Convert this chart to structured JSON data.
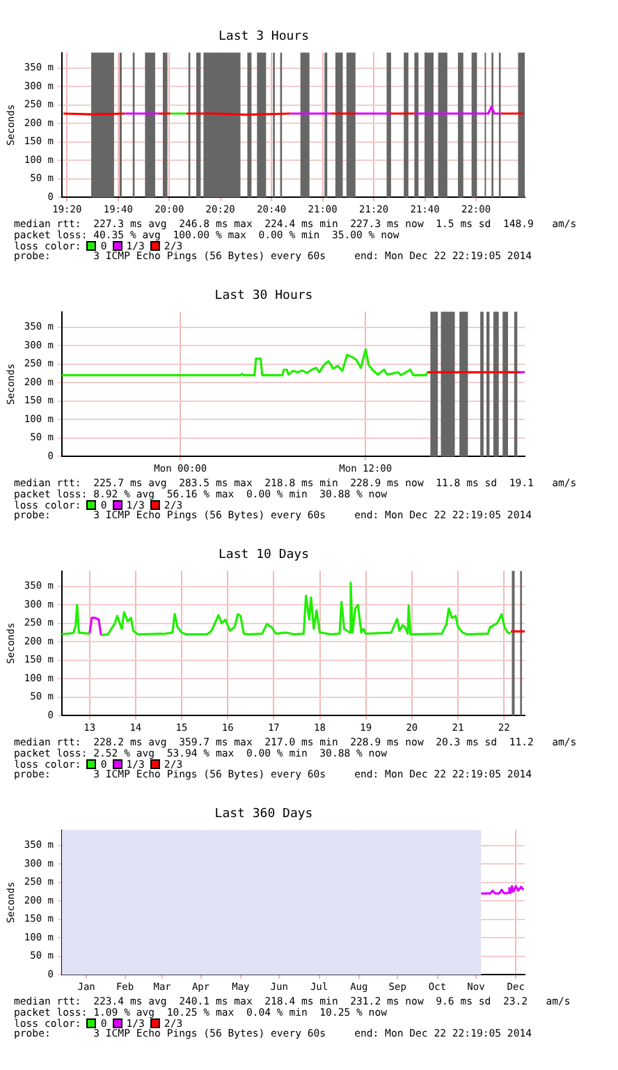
{
  "chart_data": [
    {
      "type": "line",
      "title": "Last 3 Hours",
      "ylabel": "Seconds",
      "legend": "bottom",
      "legend_title": "loss color:",
      "grid": true,
      "xlim": [
        19.3,
        22.3175
      ],
      "xticks": [
        {
          "value": 19.3333,
          "label": "19:20"
        },
        {
          "value": 19.6667,
          "label": "19:40"
        },
        {
          "value": 20,
          "label": "20:00"
        },
        {
          "value": 20.3333,
          "label": "20:20"
        },
        {
          "value": 20.6667,
          "label": "20:40"
        },
        {
          "value": 21,
          "label": "21:00"
        },
        {
          "value": 21.3333,
          "label": "21:20"
        },
        {
          "value": 21.6667,
          "label": "21:40"
        },
        {
          "value": 22,
          "label": "22:00"
        }
      ],
      "ylim": [
        0,
        392
      ],
      "yticks": [
        {
          "value": 0,
          "label": "0"
        },
        {
          "value": 50,
          "label": "50 m"
        },
        {
          "value": 100,
          "label": "100 m"
        },
        {
          "value": 150,
          "label": "150 m"
        },
        {
          "value": 200,
          "label": "200 m"
        },
        {
          "value": 250,
          "label": "250 m"
        },
        {
          "value": 300,
          "label": "300 m"
        },
        {
          "value": 350,
          "label": "350 m"
        }
      ],
      "series": [
        {
          "name": "0",
          "color": "#22ee00",
          "x": [
            20.01,
            20.11
          ],
          "values": [
            227,
            227
          ]
        },
        {
          "name": "1/3",
          "color": "#dd00ff",
          "x": [
            19.71,
            19.93,
            20.5,
            20.79,
            21.05,
            21.1,
            21.22,
            21.44,
            21.5,
            21.6,
            22.08,
            22.1,
            22.12,
            22.16
          ],
          "values": [
            227,
            227,
            null,
            227,
            227,
            null,
            227,
            227,
            null,
            227,
            227,
            245,
            227,
            227
          ]
        },
        {
          "name": "2/3",
          "color": "#ff0000",
          "x": [
            19.31,
            19.5,
            19.71,
            19.8,
            19.93,
            20.01,
            20.06,
            20.11,
            20.3,
            20.5,
            20.79,
            20.9,
            21.05,
            21.22,
            21.3,
            21.44,
            21.6,
            21.9,
            22.16,
            22.31
          ],
          "values": [
            227,
            225,
            227,
            null,
            227,
            227,
            null,
            227,
            227,
            224,
            227,
            null,
            227,
            227,
            null,
            227,
            227,
            null,
            227,
            227
          ]
        }
      ],
      "bands": [
        {
          "axis": "x",
          "from": 19.491,
          "to": 19.64,
          "color": "#666666"
        },
        {
          "axis": "x",
          "from": 19.676,
          "to": 19.69,
          "color": "#666666"
        },
        {
          "axis": "x",
          "from": 19.762,
          "to": 19.774,
          "color": "#666666"
        },
        {
          "axis": "x",
          "from": 19.842,
          "to": 19.908,
          "color": "#666666"
        },
        {
          "axis": "x",
          "from": 19.958,
          "to": 19.988,
          "color": "#666666"
        },
        {
          "axis": "x",
          "from": 20.125,
          "to": 20.137,
          "color": "#666666"
        },
        {
          "axis": "x",
          "from": 20.176,
          "to": 20.205,
          "color": "#666666"
        },
        {
          "axis": "x",
          "from": 20.223,
          "to": 20.464,
          "color": "#666666"
        },
        {
          "axis": "x",
          "from": 20.509,
          "to": 20.536,
          "color": "#666666"
        },
        {
          "axis": "x",
          "from": 20.572,
          "to": 20.631,
          "color": "#666666"
        },
        {
          "axis": "x",
          "from": 20.676,
          "to": 20.688,
          "color": "#666666"
        },
        {
          "axis": "x",
          "from": 20.723,
          "to": 20.735,
          "color": "#666666"
        },
        {
          "axis": "x",
          "from": 20.855,
          "to": 20.914,
          "color": "#666666"
        },
        {
          "axis": "x",
          "from": 21.012,
          "to": 21.03,
          "color": "#666666"
        },
        {
          "axis": "x",
          "from": 21.083,
          "to": 21.131,
          "color": "#666666"
        },
        {
          "axis": "x",
          "from": 21.155,
          "to": 21.214,
          "color": "#666666"
        },
        {
          "axis": "x",
          "from": 21.417,
          "to": 21.446,
          "color": "#666666"
        },
        {
          "axis": "x",
          "from": 21.529,
          "to": 21.559,
          "color": "#666666"
        },
        {
          "axis": "x",
          "from": 21.598,
          "to": 21.625,
          "color": "#666666"
        },
        {
          "axis": "x",
          "from": 21.664,
          "to": 21.723,
          "color": "#666666"
        },
        {
          "axis": "x",
          "from": 21.753,
          "to": 21.813,
          "color": "#666666"
        },
        {
          "axis": "x",
          "from": 21.882,
          "to": 21.917,
          "color": "#666666"
        },
        {
          "axis": "x",
          "from": 21.971,
          "to": 22.006,
          "color": "#666666"
        },
        {
          "axis": "x",
          "from": 22.056,
          "to": 22.065,
          "color": "#666666"
        },
        {
          "axis": "x",
          "from": 22.101,
          "to": 22.113,
          "color": "#666666"
        },
        {
          "axis": "x",
          "from": 22.149,
          "to": 22.161,
          "color": "#666666"
        },
        {
          "axis": "x",
          "from": 22.274,
          "to": 22.3175,
          "color": "#666666"
        }
      ],
      "annotations": [
        "median rtt:  227.3 ms avg  246.8 ms max  224.4 ms min  227.3 ms now  1.5 ms sd  148.9   am/s",
        "packet loss: 40.35 % avg  100.00 % max  0.00 % min  35.00 % now",
        "probe:       3 ICMP Echo Pings (56 Bytes) every 60s",
        "end: Mon Dec 22 22:19:05 2014"
      ]
    },
    {
      "type": "line",
      "title": "Last 30 Hours",
      "ylabel": "Seconds",
      "legend": "bottom",
      "legend_title": "loss color:",
      "grid": true,
      "xlim": [
        "2014-12-21T16:19",
        "2014-12-22T22:19"
      ],
      "xticks": [
        {
          "value": "2014-12-22T00:00",
          "label": "Mon 00:00"
        },
        {
          "value": "2014-12-22T12:00",
          "label": "Mon 12:00"
        }
      ],
      "ylim": [
        0,
        392
      ],
      "yticks": [
        {
          "value": 0,
          "label": "0"
        },
        {
          "value": 50,
          "label": "50 m"
        },
        {
          "value": 100,
          "label": "100 m"
        },
        {
          "value": 150,
          "label": "150 m"
        },
        {
          "value": 200,
          "label": "200 m"
        },
        {
          "value": 250,
          "label": "250 m"
        },
        {
          "value": 300,
          "label": "300 m"
        },
        {
          "value": 350,
          "label": "350 m"
        }
      ],
      "series": [
        {
          "name": "0",
          "color": "#22ee00",
          "x": [
            "2014-12-21T16:19",
            "2014-12-22T03:54",
            "2014-12-22T04:00",
            "2014-12-22T04:06",
            "2014-12-22T04:48",
            "2014-12-22T04:54",
            "2014-12-22T05:12",
            "2014-12-22T05:18",
            "2014-12-22T06:36",
            "2014-12-22T06:42",
            "2014-12-22T06:54",
            "2014-12-22T07:00",
            "2014-12-22T07:18",
            "2014-12-22T07:36",
            "2014-12-22T07:54",
            "2014-12-22T08:12",
            "2014-12-22T08:30",
            "2014-12-22T08:48",
            "2014-12-22T09:00",
            "2014-12-22T09:18",
            "2014-12-22T09:36",
            "2014-12-22T09:54",
            "2014-12-22T10:12",
            "2014-12-22T10:30",
            "2014-12-22T10:48",
            "2014-12-22T11:06",
            "2014-12-22T11:24",
            "2014-12-22T11:42",
            "2014-12-22T12:00",
            "2014-12-22T12:12",
            "2014-12-22T12:30",
            "2014-12-22T12:48",
            "2014-12-22T13:12",
            "2014-12-22T13:24",
            "2014-12-22T14:06",
            "2014-12-22T14:18",
            "2014-12-22T14:54",
            "2014-12-22T15:06",
            "2014-12-22T15:54",
            "2014-12-22T16:00"
          ],
          "values": [
            220,
            220,
            224,
            220,
            220,
            265,
            265,
            220,
            220,
            235,
            235,
            222,
            232,
            228,
            233,
            226,
            235,
            240,
            228,
            248,
            258,
            238,
            245,
            232,
            275,
            270,
            262,
            240,
            290,
            248,
            232,
            222,
            235,
            222,
            228,
            220,
            235,
            220,
            220,
            228
          ]
        },
        {
          "name": "1/3",
          "color": "#dd00ff",
          "x": [
            "2014-12-22T22:00",
            "2014-12-22T22:19"
          ],
          "values": [
            228,
            228
          ]
        },
        {
          "name": "2/3",
          "color": "#ff0000",
          "x": [
            "2014-12-22T16:00",
            "2014-12-22T22:00"
          ],
          "values": [
            228,
            228
          ]
        }
      ],
      "bands": [
        {
          "axis": "x",
          "from": "2014-12-22T16:12",
          "to": "2014-12-22T16:41",
          "color": "#666666"
        },
        {
          "axis": "x",
          "from": "2014-12-22T16:53",
          "to": "2014-12-22T17:47",
          "color": "#666666"
        },
        {
          "axis": "x",
          "from": "2014-12-22T18:05",
          "to": "2014-12-22T18:38",
          "color": "#666666"
        },
        {
          "axis": "x",
          "from": "2014-12-22T19:26",
          "to": "2014-12-22T19:39",
          "color": "#666666"
        },
        {
          "axis": "x",
          "from": "2014-12-22T19:50",
          "to": "2014-12-22T20:02",
          "color": "#666666"
        },
        {
          "axis": "x",
          "from": "2014-12-22T20:17",
          "to": "2014-12-22T20:38",
          "color": "#666666"
        },
        {
          "axis": "x",
          "from": "2014-12-22T20:53",
          "to": "2014-12-22T21:14",
          "color": "#666666"
        },
        {
          "axis": "x",
          "from": "2014-12-22T21:38",
          "to": "2014-12-22T21:50",
          "color": "#666666"
        }
      ],
      "annotations": [
        "median rtt:  225.7 ms avg  283.5 ms max  218.8 ms min  228.9 ms now  11.8 ms sd  19.1   am/s",
        "packet loss: 8.92 % avg  56.16 % max  0.00 % min  30.88 % now",
        "probe:       3 ICMP Echo Pings (56 Bytes) every 60s",
        "end: Mon Dec 22 22:19:05 2014"
      ]
    },
    {
      "type": "line",
      "title": "Last 10 Days",
      "ylabel": "Seconds",
      "legend": "bottom",
      "legend_title": "loss color:",
      "grid": true,
      "xlim": [
        12.9,
        22.95
      ],
      "xticks": [
        {
          "value": 13.5,
          "label": "13"
        },
        {
          "value": 14.5,
          "label": "14"
        },
        {
          "value": 15.5,
          "label": "15"
        },
        {
          "value": 16.5,
          "label": "16"
        },
        {
          "value": 17.5,
          "label": "17"
        },
        {
          "value": 18.5,
          "label": "18"
        },
        {
          "value": 19.5,
          "label": "19"
        },
        {
          "value": 20.5,
          "label": "20"
        },
        {
          "value": 21.5,
          "label": "21"
        },
        {
          "value": 22.5,
          "label": "22"
        }
      ],
      "ylim": [
        0,
        392
      ],
      "yticks": [
        {
          "value": 0,
          "label": "0"
        },
        {
          "value": 50,
          "label": "50 m"
        },
        {
          "value": 100,
          "label": "100 m"
        },
        {
          "value": 150,
          "label": "150 m"
        },
        {
          "value": 200,
          "label": "200 m"
        },
        {
          "value": 250,
          "label": "250 m"
        },
        {
          "value": 300,
          "label": "300 m"
        },
        {
          "value": 350,
          "label": "350 m"
        }
      ],
      "series": [
        {
          "name": "0",
          "color": "#22ee00",
          "x": [
            12.9,
            13.15,
            13.2,
            13.23,
            13.27,
            13.5,
            13.6,
            13.75,
            13.9,
            14.05,
            14.1,
            14.2,
            14.25,
            14.33,
            14.4,
            14.45,
            14.55,
            15.15,
            15.3,
            15.35,
            15.41,
            15.5,
            15.6,
            16.05,
            16.15,
            16.3,
            16.37,
            16.45,
            16.55,
            16.65,
            16.72,
            16.78,
            16.85,
            16.95,
            17.25,
            17.35,
            17.45,
            17.55,
            17.75,
            17.95,
            18.15,
            18.2,
            18.27,
            18.31,
            18.37,
            18.43,
            18.5,
            18.75,
            18.93,
            18.97,
            19.03,
            19.15,
            19.17,
            19.21,
            19.27,
            19.33,
            19.4,
            19.45,
            19.5,
            20.05,
            20.18,
            20.23,
            20.3,
            20.35,
            20.41,
            20.43,
            20.47,
            21.15,
            21.25,
            21.3,
            21.37,
            21.45,
            21.5,
            21.6,
            21.7,
            22.15,
            22.2,
            22.35,
            22.45,
            22.51,
            22.58,
            22.65
          ],
          "values": [
            220,
            224,
            245,
            300,
            225,
            222,
            null,
            218,
            220,
            250,
            270,
            235,
            280,
            255,
            265,
            230,
            220,
            222,
            225,
            275,
            240,
            225,
            220,
            220,
            230,
            272,
            250,
            260,
            230,
            240,
            275,
            270,
            222,
            220,
            222,
            248,
            240,
            222,
            225,
            220,
            222,
            325,
            260,
            320,
            235,
            285,
            225,
            220,
            222,
            308,
            235,
            225,
            360,
            225,
            290,
            300,
            225,
            235,
            222,
            225,
            262,
            230,
            245,
            240,
            222,
            298,
            220,
            222,
            248,
            290,
            265,
            270,
            240,
            225,
            220,
            222,
            240,
            250,
            275,
            240,
            225,
            222
          ]
        },
        {
          "name": "1/3",
          "color": "#dd00ff",
          "x": [
            13.5,
            13.55,
            13.62,
            13.7,
            13.75
          ],
          "values": [
            222,
            265,
            265,
            260,
            218
          ]
        },
        {
          "name": "2/3",
          "color": "#ff0000",
          "x": [
            22.65,
            22.95
          ],
          "values": [
            228,
            228
          ]
        }
      ],
      "bands": [
        {
          "axis": "x",
          "from": 22.67,
          "to": 22.73,
          "color": "#666666"
        },
        {
          "axis": "x",
          "from": 22.85,
          "to": 22.89,
          "color": "#666666"
        }
      ],
      "annotations": [
        "median rtt:  228.2 ms avg  359.7 ms max  217.0 ms min  228.9 ms now  20.3 ms sd  11.2   am/s",
        "packet loss: 2.52 % avg  53.94 % max  0.00 % min  30.88 % now",
        "probe:       3 ICMP Echo Pings (56 Bytes) every 60s",
        "end: Mon Dec 22 22:19:05 2014"
      ]
    },
    {
      "type": "line",
      "title": "Last 360 Days",
      "ylabel": "Seconds",
      "legend": "bottom",
      "legend_title": "loss color:",
      "grid": true,
      "xlim": [
        "2013-12-27T22:19",
        "2014-12-22T22:19"
      ],
      "xticks": [
        {
          "value": "2014-01-16",
          "label": "Jan"
        },
        {
          "value": "2014-02-15",
          "label": "Feb"
        },
        {
          "value": "2014-03-16",
          "label": "Mar"
        },
        {
          "value": "2014-04-15",
          "label": "Apr"
        },
        {
          "value": "2014-05-16",
          "label": "May"
        },
        {
          "value": "2014-06-15",
          "label": "Jun"
        },
        {
          "value": "2014-07-16",
          "label": "Jul"
        },
        {
          "value": "2014-08-16",
          "label": "Aug"
        },
        {
          "value": "2014-09-15",
          "label": "Sep"
        },
        {
          "value": "2014-10-16",
          "label": "Oct"
        },
        {
          "value": "2014-11-15",
          "label": "Nov"
        },
        {
          "value": "2014-12-16",
          "label": "Dec"
        }
      ],
      "ylim": [
        0,
        392
      ],
      "yticks": [
        {
          "value": 0,
          "label": "0"
        },
        {
          "value": 50,
          "label": "50 m"
        },
        {
          "value": 100,
          "label": "100 m"
        },
        {
          "value": 150,
          "label": "150 m"
        },
        {
          "value": 200,
          "label": "200 m"
        },
        {
          "value": 250,
          "label": "250 m"
        },
        {
          "value": 300,
          "label": "300 m"
        },
        {
          "value": 350,
          "label": "350 m"
        }
      ],
      "series": [
        {
          "name": "0",
          "color": "#22ee00"
        },
        {
          "name": "1/3",
          "color": "#dd00ff",
          "x": [
            "2014-11-19",
            "2014-11-26",
            "2014-11-28",
            "2014-11-30",
            "2014-12-03",
            "2014-12-05",
            "2014-12-07",
            "2014-12-10",
            "2014-12-11",
            "2014-12-12",
            "2014-12-13",
            "2014-12-14",
            "2014-12-16",
            "2014-12-18",
            "2014-12-20",
            "2014-12-22"
          ],
          "values": [
            220,
            220,
            228,
            220,
            220,
            230,
            220,
            222,
            235,
            222,
            240,
            225,
            240,
            228,
            238,
            230
          ]
        },
        {
          "name": "2/3",
          "color": "#ff0000"
        }
      ],
      "bands": [
        {
          "axis": "x",
          "from": "2013-12-27T22:19",
          "to": "2014-11-19",
          "color": "#e2e2f6"
        }
      ],
      "annotations": [
        "median rtt:  223.4 ms avg  240.1 ms max  218.4 ms min  231.2 ms now  9.6 ms sd  23.2   am/s",
        "packet loss: 1.09 % avg  10.25 % max  0.04 % min  10.25 % now",
        "probe:       3 ICMP Echo Pings (56 Bytes) every 60s",
        "end: Mon Dec 22 22:19:05 2014"
      ]
    }
  ]
}
